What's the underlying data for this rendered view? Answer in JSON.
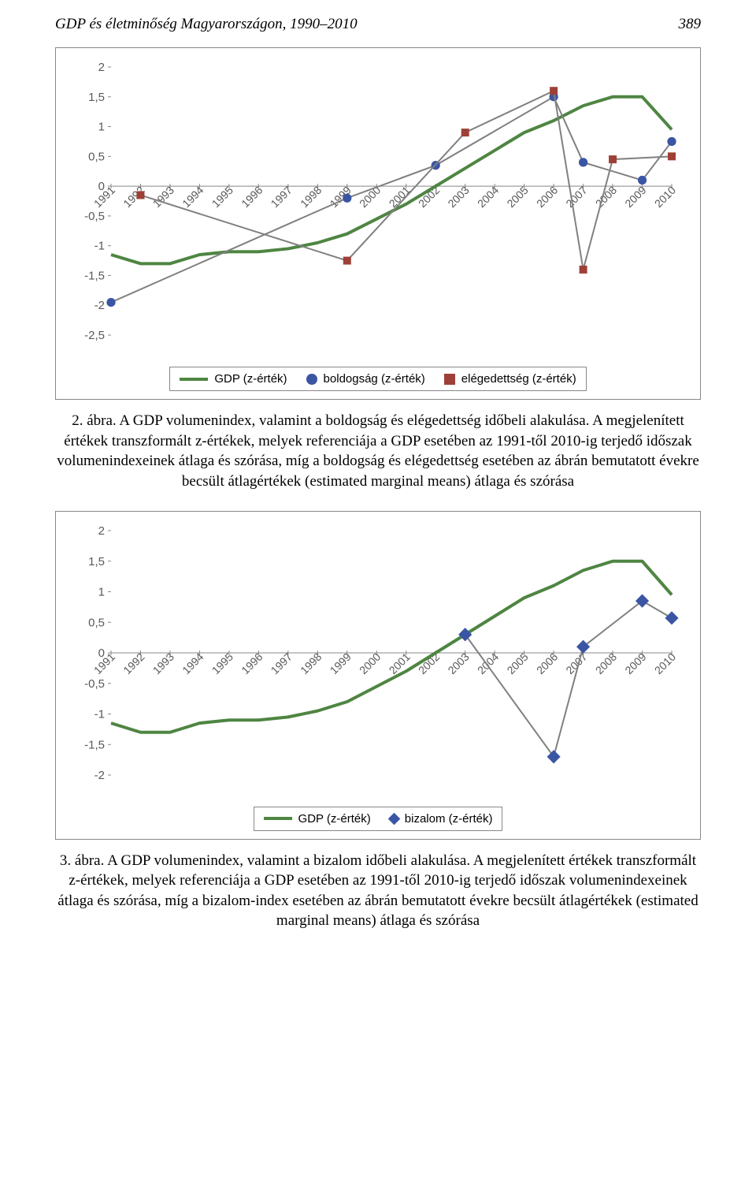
{
  "header": {
    "title_left": "GDP és életminőség Magyarországon, 1990–2010",
    "page_right": "389"
  },
  "years": [
    "1991",
    "1992",
    "1993",
    "1994",
    "1995",
    "1996",
    "1997",
    "1998",
    "1999",
    "2000",
    "2001",
    "2002",
    "2003",
    "2004",
    "2005",
    "2006",
    "2007",
    "2008",
    "2009",
    "2010"
  ],
  "chart1": {
    "type": "line",
    "ylim": [
      -2.5,
      2.0
    ],
    "yticks": [
      2,
      1.5,
      1,
      0.5,
      0,
      -0.5,
      -1,
      -1.5,
      -2,
      -2.5
    ],
    "ytick_labels": [
      "2",
      "1,5",
      "1",
      "0,5",
      "0",
      "-0,5",
      "-1",
      "-1,5",
      "-2",
      "-2,5"
    ],
    "plot_bg": "#ffffff",
    "series": {
      "gdp": {
        "label": "GDP (z-érték)",
        "color": "#4e8542",
        "stroke_width": 4,
        "marker": "none",
        "values": [
          -1.15,
          -1.3,
          -1.3,
          -1.15,
          -1.1,
          -1.1,
          -1.05,
          -0.95,
          -0.8,
          -0.55,
          -0.3,
          0.0,
          0.3,
          0.6,
          0.9,
          1.1,
          1.35,
          1.5,
          1.5,
          0.95,
          0.8
        ]
      },
      "boldogsag": {
        "label": "boldogság (z-érték)",
        "color": "#3a55a4",
        "line_color": "#808080",
        "stroke_width": 2,
        "marker": "circle",
        "marker_size": 9,
        "values": {
          "1991": -1.95,
          "1999": -0.2,
          "2002": 0.35,
          "2006": 1.5,
          "2007": 0.4,
          "2009": 0.1,
          "2010": 0.75
        }
      },
      "elegedettseg": {
        "label": "elégedettség (z-érték)",
        "color": "#9e4038",
        "line_color": "#808080",
        "stroke_width": 2,
        "marker": "square",
        "marker_size": 10,
        "values": {
          "1992": -0.15,
          "1999": -1.25,
          "2003": 0.9,
          "2006": 1.6,
          "2007": -1.4,
          "2008": 0.45,
          "2010": 0.5
        }
      }
    },
    "legend_items": [
      "gdp",
      "boldogsag",
      "elegedettseg"
    ]
  },
  "caption1": "2. ábra. A GDP volumenindex, valamint a boldogság és elégedettség időbeli alakulása. A megjelenített értékek transzformált z-értékek, melyek referenciája a GDP esetében az 1991-től 2010-ig terjedő időszak volumenindexeinek átlaga és szórása, míg a boldogság és elégedettség esetében az ábrán bemutatott évekre becsült átlagértékek (estimated marginal means) átlaga és szórása",
  "chart2": {
    "type": "line",
    "ylim": [
      -2.0,
      2.0
    ],
    "yticks": [
      2,
      1.5,
      1,
      0.5,
      0,
      -0.5,
      -1,
      -1.5,
      -2
    ],
    "ytick_labels": [
      "2",
      "1,5",
      "1",
      "0,5",
      "0",
      "-0,5",
      "-1",
      "-1,5",
      "-2"
    ],
    "plot_bg": "#ffffff",
    "series": {
      "gdp": {
        "label": "GDP (z-érték)",
        "color": "#4e8542",
        "stroke_width": 4,
        "marker": "none",
        "values": [
          -1.15,
          -1.3,
          -1.3,
          -1.15,
          -1.1,
          -1.1,
          -1.05,
          -0.95,
          -0.8,
          -0.55,
          -0.3,
          0.0,
          0.3,
          0.6,
          0.9,
          1.1,
          1.35,
          1.5,
          1.5,
          0.95,
          0.78
        ]
      },
      "bizalom": {
        "label": "bizalom (z-érték)",
        "color": "#3a55a4",
        "line_color": "#808080",
        "stroke_width": 2,
        "marker": "diamond",
        "marker_size": 12,
        "values": {
          "2003": 0.3,
          "2006": -1.7,
          "2007": 0.1,
          "2009": 0.85,
          "2010": 0.57
        }
      }
    },
    "legend_items": [
      "gdp",
      "bizalom"
    ]
  },
  "caption2": "3. ábra. A GDP volumenindex, valamint a bizalom időbeli alakulása. A megjelenített értékek transzformált z-értékek, melyek referenciája a GDP esetében az 1991-től 2010-ig terjedő időszak volumenindexeinek átlaga és szórása, míg a bizalom-index esetében az ábrán bemutatott évekre becsült átlagértékek (estimated marginal means) átlaga és szórása"
}
